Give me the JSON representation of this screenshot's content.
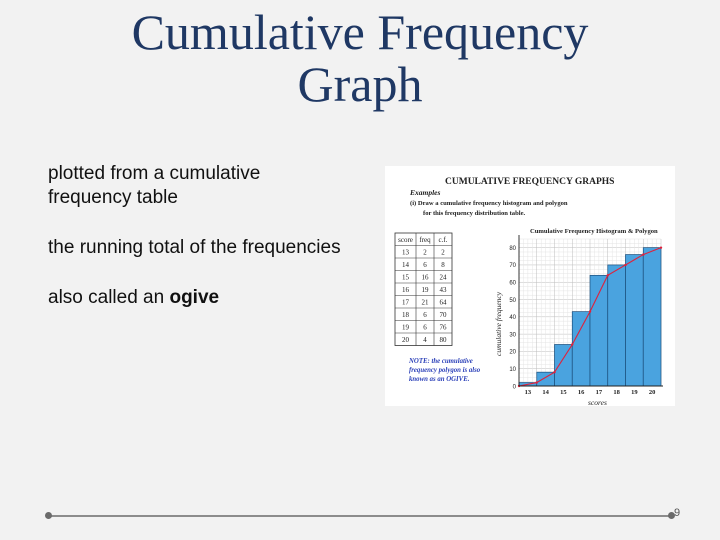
{
  "slide": {
    "title_line1": "Cumulative Frequency",
    "title_line2": "Graph",
    "bullets": [
      {
        "text": "plotted from a cumulative frequency table"
      },
      {
        "text": "the running total of the frequencies"
      },
      {
        "text_before": "also called an ",
        "bold": "ogive"
      }
    ],
    "page_number": "9"
  },
  "figure": {
    "heading": "CUMULATIVE FREQUENCY GRAPHS",
    "examples_label": "Examples",
    "instruction_line1": "(i) Draw a cumulative frequency histogram and polygon",
    "instruction_line2": "for this frequency distribution table.",
    "table_headers": [
      "score",
      "freq",
      "c.f."
    ],
    "table_rows": [
      [
        "13",
        "2",
        "2"
      ],
      [
        "14",
        "6",
        "8"
      ],
      [
        "15",
        "16",
        "24"
      ],
      [
        "16",
        "19",
        "43"
      ],
      [
        "17",
        "21",
        "64"
      ],
      [
        "18",
        "6",
        "70"
      ],
      [
        "19",
        "6",
        "76"
      ],
      [
        "20",
        "4",
        "80"
      ]
    ],
    "note_line1": "NOTE: the cumulative",
    "note_line2": "frequency polygon is also",
    "note_line3": "known as an OGIVE."
  },
  "chart_data": {
    "type": "bar",
    "title": "Cumulative Frequency Histogram & Polygon",
    "xlabel": "scores",
    "ylabel": "cumulative frequency",
    "categories": [
      "13",
      "14",
      "15",
      "16",
      "17",
      "18",
      "19",
      "20"
    ],
    "values": [
      2,
      8,
      24,
      43,
      64,
      70,
      76,
      80
    ],
    "polygon": [
      [
        12.5,
        0
      ],
      [
        13.5,
        2
      ],
      [
        14.5,
        8
      ],
      [
        15.5,
        24
      ],
      [
        16.5,
        43
      ],
      [
        17.5,
        64
      ],
      [
        18.5,
        70
      ],
      [
        19.5,
        76
      ],
      [
        20.5,
        80
      ]
    ],
    "ylim": [
      0,
      85
    ],
    "yticks": [
      0,
      10,
      20,
      30,
      40,
      50,
      60,
      70,
      80
    ],
    "grid": true,
    "bar_color": "#4aa3df",
    "polygon_color": "#e0203a"
  }
}
